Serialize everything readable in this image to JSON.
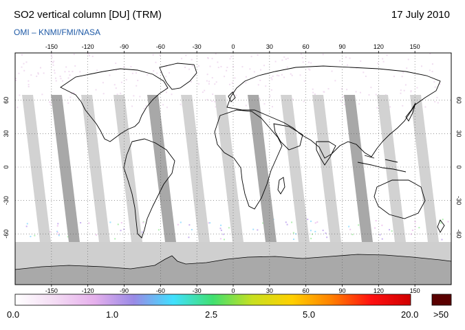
{
  "header": {
    "title": "SO2 vertical column [DU] (TRM)",
    "date": "17 July 2010",
    "credit": "OMI  –  KNMI/FMI/NASA"
  },
  "map": {
    "lon_ticks": [
      "-150",
      "-120",
      "-90",
      "-60",
      "-30",
      "0",
      "30",
      "60",
      "90",
      "120",
      "150"
    ],
    "lat_ticks": [
      "60",
      "30",
      "0",
      "-30",
      "-60"
    ],
    "lon_values": [
      -150,
      -120,
      -90,
      -60,
      -30,
      0,
      30,
      60,
      90,
      120,
      150
    ],
    "lat_values": [
      60,
      30,
      0,
      -30,
      -60
    ],
    "colors": {
      "ocean": "#ffffff",
      "gap_light": "#d2d2d2",
      "gap_dark": "#a8a8a8",
      "polar": "#cfcfcf",
      "antarctica": "#a9a9a9",
      "noise": "#f0dcf0"
    }
  },
  "colorbar": {
    "labels": [
      "0.0",
      "1.0",
      "2.5",
      "5.0",
      "20.0"
    ],
    "overflow_label": ">50",
    "overflow_color": "#5a0000",
    "stops": [
      "#ffffff",
      "#f4dcf4",
      "#e6b0ec",
      "#9a8ae6",
      "#40e0ff",
      "#40e070",
      "#c8e020",
      "#ffd000",
      "#ff8000",
      "#ff1010",
      "#d00000"
    ]
  }
}
